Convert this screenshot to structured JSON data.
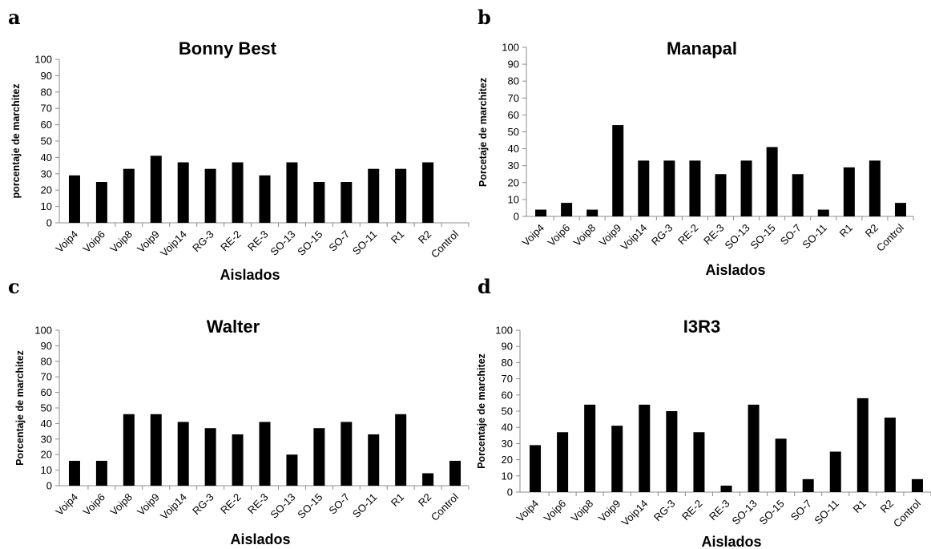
{
  "chart_data": [
    {
      "type": "bar",
      "panel_letter": "a",
      "title": "Bonny Best",
      "ylabel": "porcentaje de marchitez",
      "xlabel": "Aislados",
      "ylim": [
        0,
        100
      ],
      "yticks": [
        "0",
        "10",
        "20",
        "30",
        "40",
        "50",
        "60",
        "70",
        "80",
        "90",
        "100"
      ],
      "categories": [
        "Voip4",
        "Voip6",
        "Voip8",
        "Voip9",
        "Voip14",
        "RG-3",
        "RE-2",
        "RE-3",
        "SO-13",
        "SO-15",
        "SO-7",
        "SO-11",
        "R1",
        "R2",
        "Control"
      ],
      "values": [
        29,
        25,
        33,
        41,
        37,
        33,
        37,
        29,
        37,
        25,
        25,
        33,
        33,
        37,
        0
      ]
    },
    {
      "type": "bar",
      "panel_letter": "b",
      "title": "Manapal",
      "ylabel": "Porcetaje de marchitez",
      "xlabel": "Aislados",
      "ylim": [
        0,
        100
      ],
      "yticks": [
        "0",
        "10",
        "20",
        "30",
        "40",
        "50",
        "60",
        "70",
        "80",
        "90",
        "100"
      ],
      "categories": [
        "Voip4",
        "Voip6",
        "Voip8",
        "Voip9",
        "Voip14",
        "RG-3",
        "RE-2",
        "RE-3",
        "SO-13",
        "SO-15",
        "SO-7",
        "SO-11",
        "R1",
        "R2",
        "Control"
      ],
      "values": [
        4,
        8,
        4,
        54,
        33,
        33,
        33,
        25,
        33,
        41,
        25,
        4,
        29,
        33,
        8
      ]
    },
    {
      "type": "bar",
      "panel_letter": "c",
      "title": "Walter",
      "ylabel": "Porcentaje de marchitez",
      "xlabel": "Aislados",
      "ylim": [
        0,
        100
      ],
      "yticks": [
        "0",
        "10",
        "20",
        "30",
        "40",
        "50",
        "60",
        "70",
        "80",
        "90",
        "100"
      ],
      "categories": [
        "Voip4",
        "Voip6",
        "Voip8",
        "Voip9",
        "Voip14",
        "RG-3",
        "RE-2",
        "RE-3",
        "SO-13",
        "SO-15",
        "SO-7",
        "SO-11",
        "R1",
        "R2",
        "Control"
      ],
      "values": [
        16,
        16,
        46,
        46,
        41,
        37,
        33,
        41,
        20,
        37,
        41,
        33,
        46,
        8,
        16
      ]
    },
    {
      "type": "bar",
      "panel_letter": "d",
      "title": "I3R3",
      "ylabel": "Porcentaje de marchitez",
      "xlabel": "Aislados",
      "ylim": [
        0,
        100
      ],
      "yticks": [
        "0",
        "10",
        "20",
        "30",
        "40",
        "50",
        "60",
        "70",
        "80",
        "90",
        "100"
      ],
      "categories": [
        "Voip4",
        "Voip6",
        "Voip8",
        "Voip9",
        "Voip14",
        "RG-3",
        "RE-2",
        "RE-3",
        "SO-13",
        "SO-15",
        "SO-7",
        "SO-11",
        "R1",
        "R2",
        "Control"
      ],
      "values": [
        29,
        37,
        54,
        41,
        54,
        50,
        37,
        4,
        54,
        33,
        8,
        25,
        58,
        46,
        8
      ]
    }
  ]
}
